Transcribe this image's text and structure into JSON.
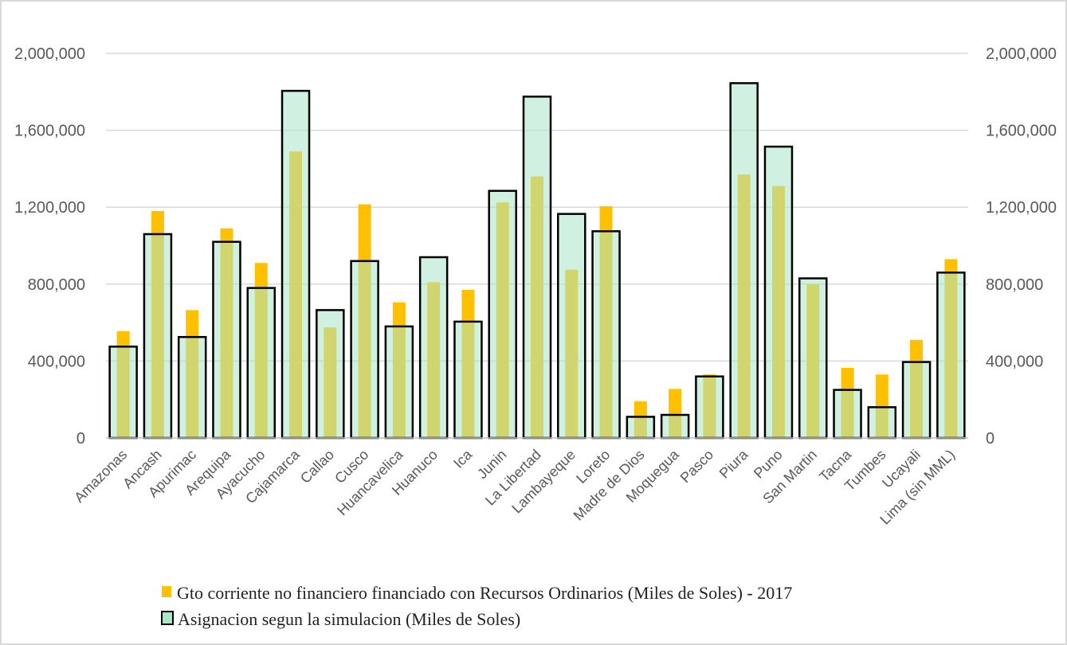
{
  "chart_data": {
    "type": "bar",
    "categories": [
      "Amazonas",
      "Ancash",
      "Apurimac",
      "Arequipa",
      "Ayacucho",
      "Cajamarca",
      "Callao",
      "Cusco",
      "Huancavelica",
      "Huanuco",
      "Ica",
      "Junin",
      "La Libertad",
      "Lambayeque",
      "Loreto",
      "Madre de Dios",
      "Moquegua",
      "Pasco",
      "Piura",
      "Puno",
      "San Martin",
      "Tacna",
      "Tumbes",
      "Ucayali",
      "Lima (sin MML)"
    ],
    "series": [
      {
        "name": "Gto corriente no financiero financiado con Recursos Ordinarios (Miles de Soles)  - 2017",
        "color": "#FFC000",
        "values": [
          555000,
          1180000,
          665000,
          1090000,
          910000,
          1490000,
          575000,
          1215000,
          705000,
          810000,
          770000,
          1225000,
          1360000,
          875000,
          1205000,
          190000,
          255000,
          330000,
          1370000,
          1310000,
          800000,
          365000,
          330000,
          510000,
          930000
        ]
      },
      {
        "name": "Asignacion segun la simulacion (Miles de Soles)",
        "color": "#A9E5C9",
        "values": [
          475000,
          1060000,
          525000,
          1020000,
          780000,
          1805000,
          665000,
          920000,
          580000,
          940000,
          605000,
          1285000,
          1775000,
          1165000,
          1075000,
          110000,
          120000,
          320000,
          1845000,
          1515000,
          830000,
          250000,
          160000,
          395000,
          860000
        ]
      }
    ],
    "ylim": [
      0,
      2000000
    ],
    "yticks": [
      0,
      400000,
      800000,
      1200000,
      1600000,
      2000000
    ],
    "ytick_labels": [
      "0",
      "400,000",
      "800,000",
      "1,200,000",
      "1,600,000",
      "2,000,000"
    ],
    "secondary_axis": true,
    "grid": true,
    "legend_position": "bottom"
  }
}
